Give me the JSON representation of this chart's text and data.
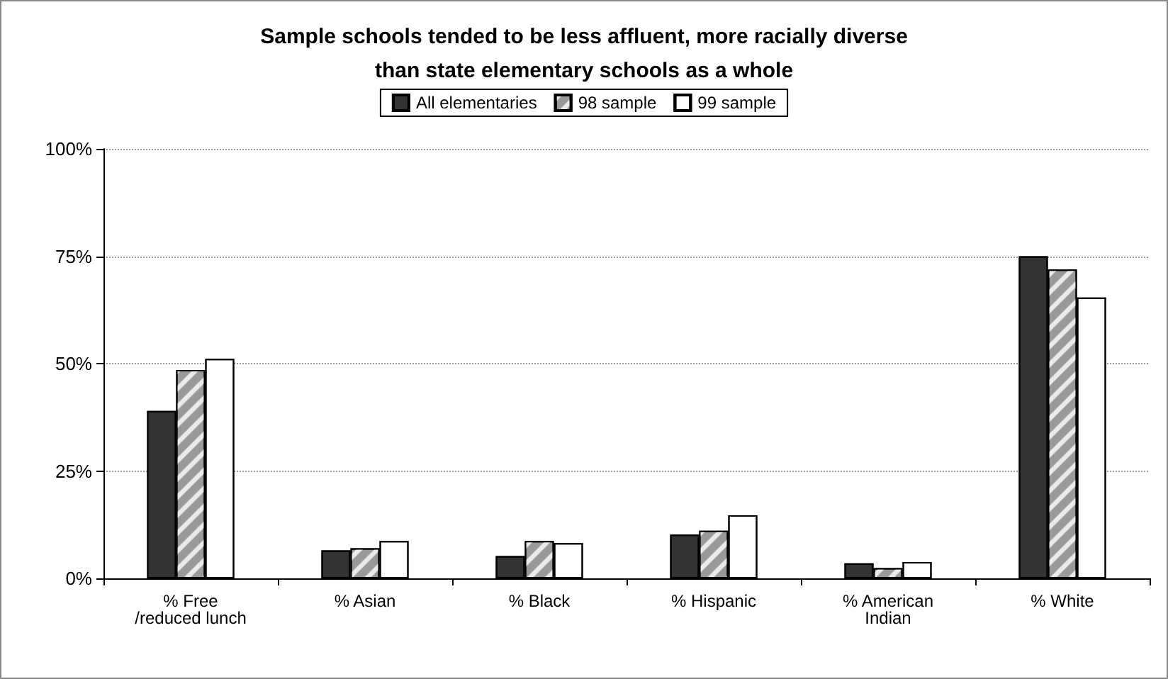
{
  "chart_data": {
    "type": "bar",
    "title": "Sample schools tended to be less affluent, more racially diverse\nthan state elementary schools as a whole",
    "categories": [
      "% Free\n/reduced lunch",
      "% Asian",
      "% Black",
      "% Hispanic",
      "% American\nIndian",
      "% White"
    ],
    "series": [
      {
        "name": "All elementaries",
        "color": "#333333",
        "values": [
          39,
          6.5,
          5.2,
          10.2,
          3.5,
          75
        ]
      },
      {
        "name": "98 sample",
        "color": "#999999",
        "values": [
          48.5,
          7,
          8.7,
          11.1,
          2.4,
          71.9
        ]
      },
      {
        "name": "99 sample",
        "color": "#ffffff",
        "values": [
          51.1,
          8.7,
          8.2,
          14.7,
          3.8,
          65.4
        ]
      }
    ],
    "ylim": [
      0,
      100
    ],
    "yticks": [
      {
        "value": 0,
        "label": "0%"
      },
      {
        "value": 25,
        "label": "25%"
      },
      {
        "value": 50,
        "label": "50%"
      },
      {
        "value": 75,
        "label": "75%"
      },
      {
        "value": 100,
        "label": "100%"
      }
    ],
    "grid": "y",
    "legend": "top"
  }
}
